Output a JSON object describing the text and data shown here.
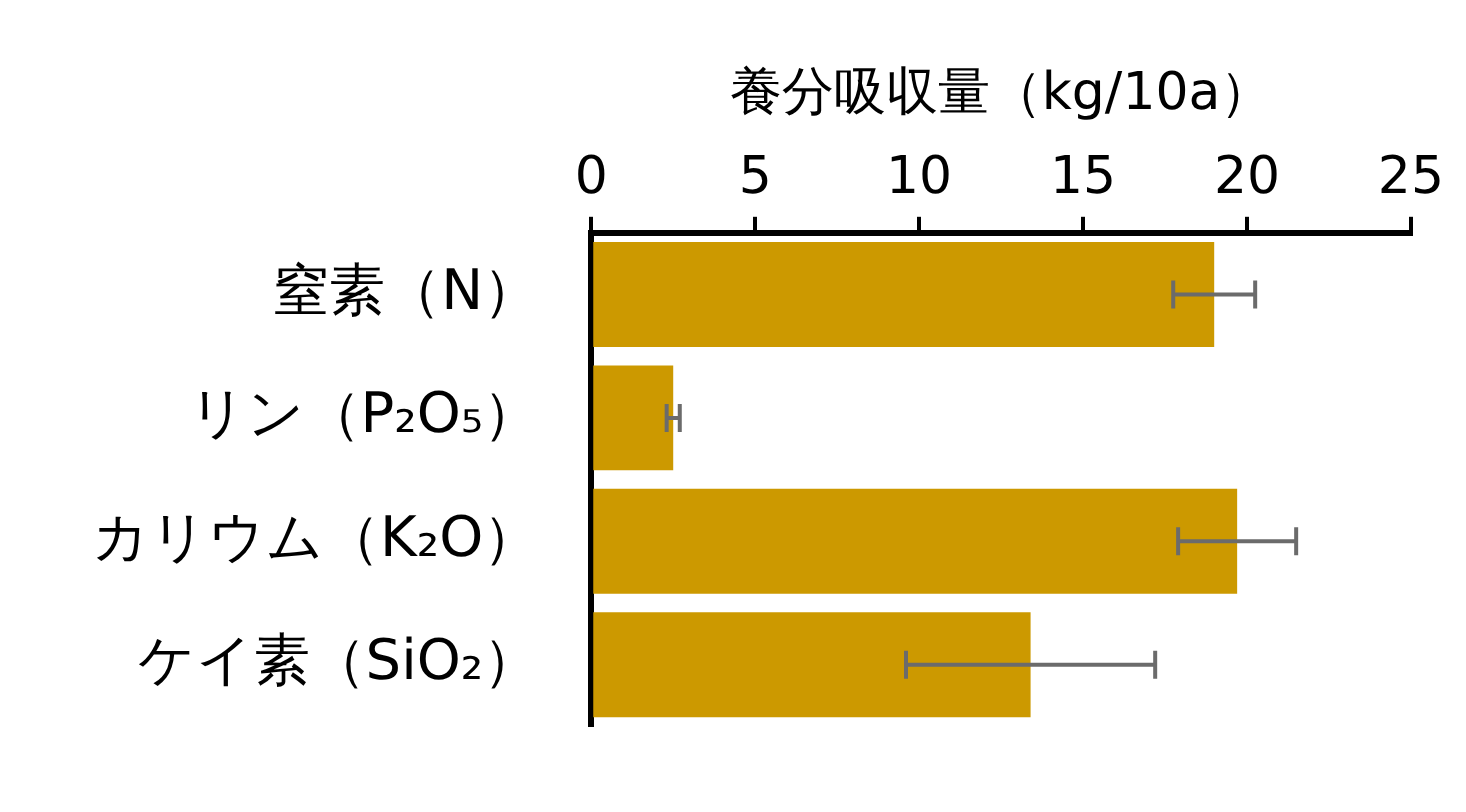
{
  "chart_data": {
    "type": "bar",
    "orientation": "horizontal",
    "xlabel": "養分吸収量（kg/10a）",
    "categories": [
      "窒素（N）",
      "リン（P₂O₅）",
      "カリウム（K₂O）",
      "ケイ素（SiO₂）"
    ],
    "values": [
      19.0,
      2.5,
      19.7,
      13.4
    ],
    "errors": [
      1.25,
      0.2,
      1.8,
      3.8
    ],
    "color": "#cc9900",
    "xlim": [
      0,
      25
    ],
    "xticks": [
      0,
      5,
      10,
      15,
      20,
      25
    ],
    "grid": false,
    "legend": false
  }
}
